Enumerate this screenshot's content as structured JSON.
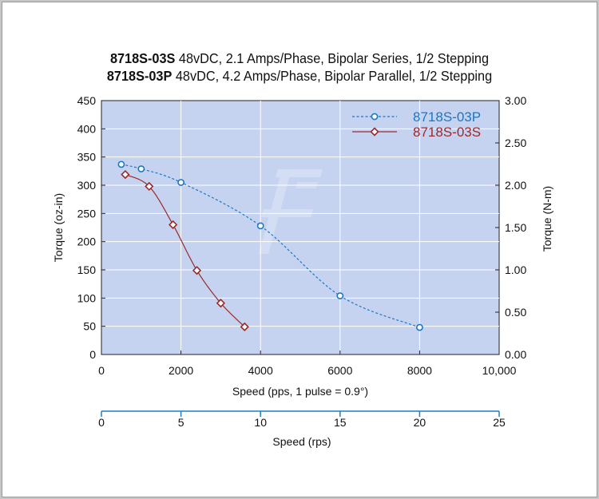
{
  "title": {
    "line1_model": "8718S-03S",
    "line1_desc": "48vDC, 2.1 Amps/Phase, Bipolar Series, 1/2 Stepping",
    "line2_model": "8718S-03P",
    "line2_desc": "48vDC, 4.2 Amps/Phase, Bipolar Parallel, 1/2 Stepping"
  },
  "chart_data": {
    "type": "line",
    "xlabel": "Speed (pps, 1 pulse = 0.9°)",
    "ylabel": "Torque (oz-in)",
    "y2label": "Torque (N-m)",
    "x2label": "Speed (rps)",
    "xlim": [
      0,
      10000
    ],
    "ylim": [
      0,
      450
    ],
    "y2lim": [
      0,
      3.0
    ],
    "x2lim": [
      0,
      25
    ],
    "x_ticks": [
      "0",
      "2000",
      "4000",
      "6000",
      "8000",
      "10,000"
    ],
    "y_ticks": [
      "0",
      "50",
      "100",
      "150",
      "200",
      "250",
      "300",
      "350",
      "400",
      "450"
    ],
    "y2_ticks": [
      "0.00",
      "0.50",
      "1.00",
      "1.50",
      "2.00",
      "2.50",
      "3.00"
    ],
    "x2_ticks": [
      "0",
      "5",
      "10",
      "15",
      "20",
      "25"
    ],
    "grid": true,
    "legend_position": "top-right",
    "background_color": "#c5d3f0",
    "series": [
      {
        "name": "8718S-03P",
        "color": "#1a78c2",
        "line_style": "dashed",
        "marker": "circle",
        "x": [
          500,
          1000,
          2000,
          4000,
          6000,
          8000
        ],
        "y": [
          337,
          329,
          305,
          228,
          104,
          48
        ]
      },
      {
        "name": "8718S-03S",
        "color": "#9a2a2a",
        "line_style": "solid",
        "marker": "diamond",
        "x": [
          600,
          1200,
          1800,
          2400,
          3000,
          3600
        ],
        "y": [
          319,
          298,
          230,
          149,
          91,
          49
        ]
      }
    ]
  }
}
